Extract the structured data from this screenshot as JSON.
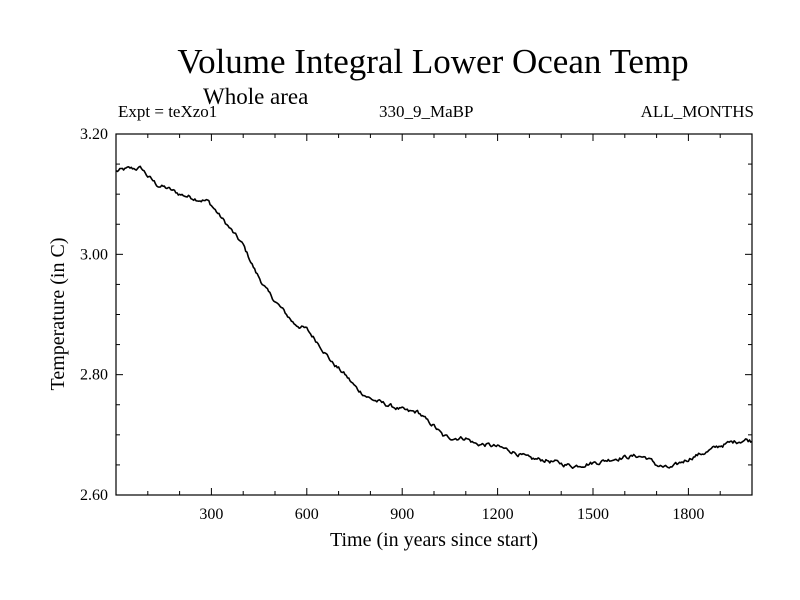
{
  "header": {
    "title": "Volume Integral Lower Ocean Temp",
    "subtitle": "Whole area",
    "experiment": "Expt = teXzo1",
    "period": "330_9_MaBP",
    "months": "ALL_MONTHS"
  },
  "chart_data": {
    "type": "line",
    "title": "Volume Integral Lower Ocean Temp",
    "subtitle": "Whole area",
    "xlabel": "Time (in years since start)",
    "ylabel": "Temperature (in C)",
    "xlim": [
      0,
      2000
    ],
    "ylim": [
      2.6,
      3.2
    ],
    "x_ticks": [
      300,
      600,
      900,
      1200,
      1500,
      1800
    ],
    "x_tick_labels": [
      "300",
      "600",
      "900",
      "1200",
      "1500",
      "1800"
    ],
    "y_ticks": [
      2.6,
      2.8,
      3.0,
      3.2
    ],
    "y_tick_labels": [
      "2.60",
      "2.80",
      "3.00",
      "3.20"
    ],
    "grid": false,
    "series": [
      {
        "name": "Temperature",
        "color": "#000000",
        "x": [
          0,
          40,
          80,
          100,
          130,
          160,
          200,
          250,
          290,
          310,
          340,
          370,
          400,
          440,
          480,
          520,
          560,
          600,
          640,
          680,
          720,
          760,
          800,
          840,
          880,
          920,
          950,
          980,
          1000,
          1030,
          1060,
          1100,
          1130,
          1170,
          1200,
          1250,
          1300,
          1350,
          1400,
          1440,
          1480,
          1520,
          1560,
          1600,
          1640,
          1670,
          1700,
          1730,
          1750,
          1780,
          1820,
          1860,
          1900,
          1940,
          1980,
          2000
        ],
        "y": [
          3.138,
          3.142,
          3.143,
          3.13,
          3.115,
          3.11,
          3.1,
          3.093,
          3.088,
          3.075,
          3.055,
          3.035,
          3.015,
          2.97,
          2.935,
          2.91,
          2.885,
          2.875,
          2.85,
          2.82,
          2.8,
          2.775,
          2.76,
          2.752,
          2.745,
          2.738,
          2.738,
          2.722,
          2.715,
          2.697,
          2.695,
          2.695,
          2.685,
          2.683,
          2.68,
          2.672,
          2.66,
          2.658,
          2.652,
          2.648,
          2.652,
          2.655,
          2.66,
          2.663,
          2.665,
          2.662,
          2.65,
          2.645,
          2.645,
          2.655,
          2.665,
          2.672,
          2.682,
          2.688,
          2.692,
          2.69
        ]
      }
    ]
  }
}
